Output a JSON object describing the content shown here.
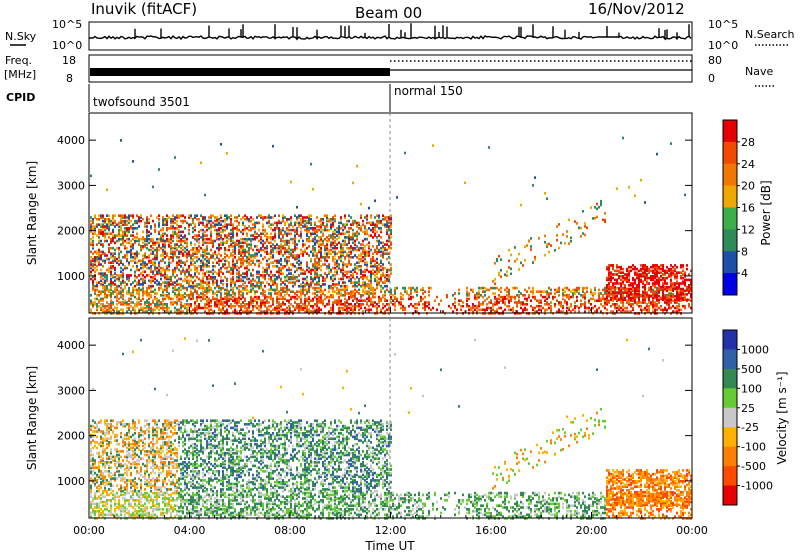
{
  "header": {
    "station": "Inuvik (fitACF)",
    "beam": "Beam 00",
    "date": "16/Nov/2012"
  },
  "panels": {
    "nsky_label": "N.Sky",
    "nsky_ticks": [
      "10^5",
      "10^0"
    ],
    "nsearch_label": "N.Search",
    "freq_label_1": "Freq.",
    "freq_label_2": "[MHz]",
    "freq_ticks": [
      "18",
      "8"
    ],
    "nave_label": "Nave",
    "nave_ticks": [
      "80",
      "0"
    ],
    "cpid_label": "CPID",
    "cpid_mode_1": "twofsound 3501",
    "cpid_mode_2": "normal 150"
  },
  "colors": {
    "power": [
      "#0000e6",
      "#1f4fa8",
      "#2f8a5a",
      "#3fae4a",
      "#f0a800",
      "#f07800",
      "#f04a00",
      "#e60000"
    ],
    "velocity": [
      "#2233aa",
      "#3060a8",
      "#338855",
      "#66cc33",
      "#c8c8c8",
      "#ffb000",
      "#ff8000",
      "#ff4a00",
      "#e60000"
    ]
  },
  "chart_data": [
    {
      "type": "heatmap",
      "title": "Power",
      "ylabel": "Slant Range [km]",
      "xlabel": "",
      "x_ticks": [
        "00:00",
        "04:00",
        "08:00",
        "12:00",
        "16:00",
        "20:00",
        "00:00"
      ],
      "y_ticks": [
        1000,
        2000,
        3000,
        4000
      ],
      "ylim": [
        180,
        4600
      ],
      "xlim_hours": [
        0,
        24
      ],
      "colorbar_label": "Power [dB]",
      "colorbar_ticks": [
        4,
        8,
        12,
        16,
        20,
        24,
        28
      ],
      "colorbar_range": [
        0,
        32
      ]
    },
    {
      "type": "heatmap",
      "title": "Velocity",
      "ylabel": "Slant Range [km]",
      "xlabel": "Time UT",
      "x_ticks": [
        "00:00",
        "04:00",
        "08:00",
        "12:00",
        "16:00",
        "20:00",
        "00:00"
      ],
      "y_ticks": [
        1000,
        2000,
        3000,
        4000
      ],
      "ylim": [
        180,
        4600
      ],
      "xlim_hours": [
        0,
        24
      ],
      "colorbar_label": "Velocity [m s⁻¹]",
      "colorbar_ticks": [
        "1000",
        "500",
        "100",
        "25",
        "-25",
        "-100",
        "-500",
        "-1000"
      ]
    }
  ]
}
